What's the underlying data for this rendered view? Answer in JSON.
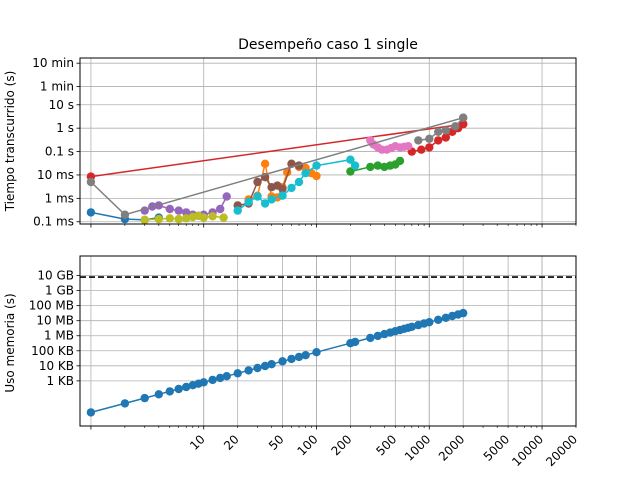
{
  "chart_data": [
    {
      "type": "line",
      "title": "Desempeño caso 1 single",
      "xlabel": "",
      "ylabel": "Tiempo transcurrido (s)",
      "xscale": "log",
      "yscale": "log",
      "xlim": [
        0.8,
        20000
      ],
      "ylim": [
        8e-05,
        1000
      ],
      "grid": true,
      "yticks": [
        {
          "value": 0.0001,
          "label": "0.1 ms"
        },
        {
          "value": 0.001,
          "label": "1 ms"
        },
        {
          "value": 0.01,
          "label": "10 ms"
        },
        {
          "value": 0.1,
          "label": "0.1 s"
        },
        {
          "value": 1,
          "label": "1 s"
        },
        {
          "value": 10,
          "label": "10 s"
        },
        {
          "value": 60,
          "label": "1 min"
        },
        {
          "value": 600,
          "label": "10 min"
        }
      ],
      "series": [
        {
          "color": "#1f77b4",
          "x": [
            1,
            2,
            3,
            4
          ],
          "y": [
            0.00025,
            0.00013,
            0.00012,
            0.00015
          ]
        },
        {
          "color": "#2ca02c",
          "x": [
            200,
            300,
            350,
            400,
            450,
            500,
            550
          ],
          "y": [
            0.014,
            0.022,
            0.025,
            0.022,
            0.025,
            0.028,
            0.04
          ]
        },
        {
          "color": "#d62728",
          "x": [
            1,
            2000
          ],
          "y": [
            0.0085,
            1.5
          ]
        },
        {
          "color": "#d62728",
          "x": [
            700,
            850,
            1000,
            1200,
            1400,
            1600,
            1800,
            2000
          ],
          "y": [
            0.1,
            0.12,
            0.15,
            0.3,
            0.4,
            0.7,
            1.0,
            1.5
          ]
        },
        {
          "color": "#ff7f0e",
          "x": [
            25,
            30,
            35,
            40,
            45,
            50,
            55,
            60,
            70,
            80,
            90,
            100
          ],
          "y": [
            0.0009,
            0.0013,
            0.03,
            0.0012,
            0.0011,
            0.003,
            0.013,
            0.03,
            0.022,
            0.02,
            0.012,
            0.009
          ]
        },
        {
          "color": "#9467bd",
          "x": [
            3,
            3.5,
            4,
            5,
            6,
            7,
            8,
            9,
            10,
            12,
            14,
            16
          ],
          "y": [
            0.0003,
            0.00045,
            0.0005,
            0.00035,
            0.0003,
            0.00025,
            0.0002,
            0.00018,
            0.0002,
            0.00025,
            0.00035,
            0.0012
          ]
        },
        {
          "color": "#8c564b",
          "x": [
            20,
            25,
            30,
            35,
            40,
            45,
            50,
            60,
            70
          ],
          "y": [
            0.0005,
            0.0006,
            0.005,
            0.008,
            0.003,
            0.0035,
            0.0025,
            0.03,
            0.025
          ]
        },
        {
          "color": "#e377c2",
          "x": [
            300,
            320,
            350,
            380,
            420,
            460,
            500,
            550,
            600,
            650
          ],
          "y": [
            0.3,
            0.2,
            0.15,
            0.12,
            0.12,
            0.14,
            0.17,
            0.15,
            0.16,
            0.17
          ]
        },
        {
          "color": "#7f7f7f",
          "x": [
            1,
            2,
            2000
          ],
          "y": [
            0.005,
            0.0002,
            2.8
          ]
        },
        {
          "color": "#7f7f7f",
          "x": [
            800,
            1000,
            1200,
            1400,
            1700,
            2000
          ],
          "y": [
            0.3,
            0.35,
            0.7,
            0.8,
            1.2,
            2.8
          ]
        },
        {
          "color": "#bcbd22",
          "x": [
            3,
            4,
            5,
            6,
            7,
            8,
            9,
            10,
            12,
            15
          ],
          "y": [
            0.00012,
            0.00013,
            0.00014,
            0.00013,
            0.00014,
            0.00016,
            0.00018,
            0.00015,
            0.00017,
            0.00015
          ]
        },
        {
          "color": "#17becf",
          "x": [
            20,
            25,
            30,
            35,
            40,
            50,
            60,
            70,
            80,
            100,
            200,
            220
          ],
          "y": [
            0.0003,
            0.0007,
            0.0012,
            0.0006,
            0.0009,
            0.0013,
            0.0028,
            0.005,
            0.012,
            0.025,
            0.045,
            0.025
          ]
        }
      ]
    },
    {
      "type": "line",
      "xlabel": "",
      "ylabel": "Uso memoria (s)",
      "xscale": "log",
      "yscale": "log",
      "xlim": [
        0.8,
        20000
      ],
      "ylim": [
        1,
        200000000000
      ],
      "grid": true,
      "yticks": [
        {
          "value": 1000,
          "label": "1 KB"
        },
        {
          "value": 10000,
          "label": "10 KB"
        },
        {
          "value": 100000,
          "label": "100 KB"
        },
        {
          "value": 1000000,
          "label": "1 MB"
        },
        {
          "value": 10000000,
          "label": "10 MB"
        },
        {
          "value": 100000000,
          "label": "100 MB"
        },
        {
          "value": 1000000000,
          "label": "1 GB"
        },
        {
          "value": 10000000000,
          "label": "10 GB"
        }
      ],
      "xticks": [
        {
          "value": 10,
          "label": "10"
        },
        {
          "value": 20,
          "label": "20"
        },
        {
          "value": 50,
          "label": "50"
        },
        {
          "value": 100,
          "label": "100"
        },
        {
          "value": 200,
          "label": "200"
        },
        {
          "value": 500,
          "label": "500"
        },
        {
          "value": 1000,
          "label": "1000"
        },
        {
          "value": 2000,
          "label": "2000"
        },
        {
          "value": 5000,
          "label": "5000"
        },
        {
          "value": 10000,
          "label": "10000"
        },
        {
          "value": 20000,
          "label": "20000"
        }
      ],
      "hline": {
        "value": 8000000000,
        "style": "dashed",
        "color": "#000000"
      },
      "series": [
        {
          "color": "#1f77b4",
          "x": [
            1,
            2,
            3,
            4,
            5,
            6,
            7,
            8,
            9,
            10,
            12,
            14,
            16,
            20,
            25,
            30,
            35,
            40,
            50,
            60,
            70,
            80,
            100,
            200,
            220,
            300,
            350,
            400,
            450,
            500,
            550,
            600,
            650,
            700,
            800,
            900,
            1000,
            1200,
            1400,
            1600,
            1800,
            2000
          ],
          "y": [
            8,
            32,
            72,
            128,
            200,
            288,
            392,
            512,
            648,
            800,
            1152,
            1568,
            2048,
            3200,
            5000,
            7200,
            9800,
            12800,
            20000,
            28800,
            39200,
            51200,
            80000,
            320000,
            387200,
            720000,
            980000,
            1280000,
            1620000,
            2000000,
            2420000,
            2880000,
            3380000,
            3920000,
            5120000,
            6480000,
            8000000,
            11520000,
            15680000,
            20480000,
            25920000,
            32000000
          ]
        }
      ]
    }
  ]
}
